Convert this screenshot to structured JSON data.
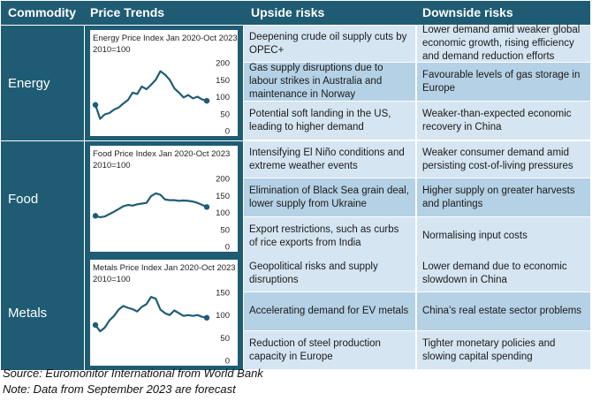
{
  "headers": {
    "commodity": "Commodity",
    "price_trends": "Price Trends",
    "upside": "Upside risks",
    "downside": "Downside risks"
  },
  "groups": [
    {
      "name": "Energy",
      "chart_title": "Energy Price Index Jan 2020-Oct 2023",
      "chart_base": "2010=100",
      "upside": [
        "Deepening crude oil supply cuts by OPEC+",
        "Gas supply disruptions due to labour strikes in Australia and maintenance in Norway",
        "Potential soft landing in the US, leading to higher demand"
      ],
      "downside": [
        "Lower demand amid weaker global economic growth, rising efficiency and demand reduction efforts",
        "Favourable levels of gas storage in Europe",
        "Weaker-than-expected economic recovery in China"
      ]
    },
    {
      "name": "Food",
      "chart_title": "Food Price Index Jan 2020-Oct 2023",
      "chart_base": "2010=100",
      "upside": [
        "Intensifying El Niño conditions and extreme weather events",
        "Elimination of Black Sea grain deal, lower supply from Ukraine",
        "Export restrictions, such as curbs of rice exports from India"
      ],
      "downside": [
        "Weaker consumer demand amid persisting cost-of-living pressures",
        "Higher supply on greater harvests and plantings",
        "Normalising input costs"
      ]
    },
    {
      "name": "Metals",
      "chart_title": "Metals Price Index Jan 2020-Oct 2023",
      "chart_base": "2010=100",
      "upside": [
        "Geopolitical risks and supply disruptions",
        "Accelerating demand for EV metals",
        "Reduction of steel production capacity in Europe"
      ],
      "downside": [
        "Lower demand due to economic slowdown in China",
        "China’s real estate sector problems",
        "Tighter monetary policies and slowing capital spending"
      ]
    }
  ],
  "chart_data": [
    {
      "type": "line",
      "title": "Energy Price Index Jan 2020-Oct 2023",
      "subtitle": "2010=100",
      "ylim": [
        0,
        200
      ],
      "yticks": [
        0,
        50,
        100,
        150,
        200
      ],
      "x_range": [
        "Jan 2020",
        "Oct 2023"
      ],
      "forecast_from": "Sep 2023",
      "line_color": "#1f5c74",
      "values": [
        76,
        35,
        48,
        52,
        62,
        68,
        80,
        90,
        112,
        108,
        130,
        122,
        135,
        150,
        175,
        165,
        150,
        125,
        112,
        98,
        105,
        95,
        100,
        92,
        88
      ]
    },
    {
      "type": "line",
      "title": "Food Price Index Jan 2020-Oct 2023",
      "subtitle": "2010=100",
      "ylim": [
        0,
        200
      ],
      "yticks": [
        0,
        50,
        100,
        150,
        200
      ],
      "x_range": [
        "Jan 2020",
        "Oct 2023"
      ],
      "forecast_from": "Sep 2023",
      "line_color": "#1f5c74",
      "values": [
        90,
        86,
        88,
        95,
        102,
        110,
        118,
        122,
        120,
        124,
        126,
        128,
        148,
        156,
        152,
        138,
        136,
        136,
        134,
        135,
        134,
        132,
        128,
        122,
        116
      ]
    },
    {
      "type": "line",
      "title": "Metals Price Index Jan 2020-Oct 2023",
      "subtitle": "2010=100",
      "ylim": [
        0,
        150
      ],
      "yticks": [
        0,
        50,
        100,
        150
      ],
      "x_range": [
        "Jan 2020",
        "Oct 2023"
      ],
      "forecast_from": "Sep 2023",
      "line_color": "#1f5c74",
      "values": [
        78,
        64,
        72,
        88,
        98,
        112,
        120,
        116,
        113,
        108,
        118,
        124,
        140,
        136,
        112,
        104,
        100,
        110,
        104,
        98,
        100,
        98,
        100,
        96,
        94
      ]
    }
  ],
  "footer": {
    "source": "Source: Euromonitor International from World Bank",
    "note": "Note: Data from September 2023 are forecast"
  }
}
